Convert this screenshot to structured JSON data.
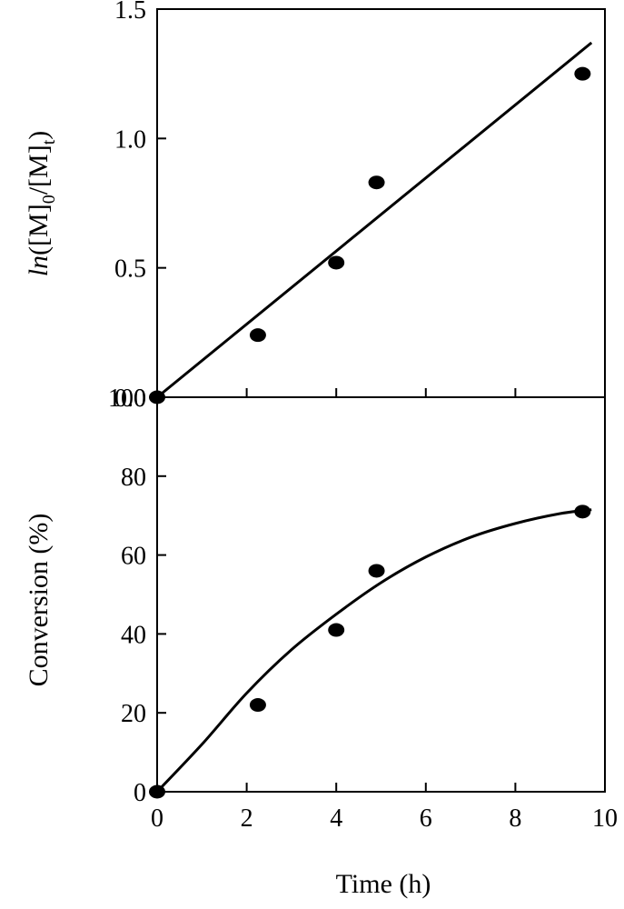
{
  "chart_data": [
    {
      "type": "scatter",
      "panel": "top",
      "ylabel": {
        "prefix": "ln",
        "m1": "([M]",
        "sub0": "0",
        "m2": "/[M]",
        "subt": "t",
        "m3": ")"
      },
      "xlim": [
        0,
        10
      ],
      "ylim": [
        0,
        1.5
      ],
      "yticks": [
        "0.0",
        "0.5",
        "1.0",
        "1.5"
      ],
      "yticks_values": [
        0,
        0.5,
        1.0,
        1.5
      ],
      "xticks_values": [
        0,
        2,
        4,
        6,
        8,
        10
      ],
      "series": [
        {
          "points": [
            [
              0,
              0
            ],
            [
              2.25,
              0.24
            ],
            [
              4.0,
              0.52
            ],
            [
              4.9,
              0.83
            ],
            [
              9.5,
              1.25
            ]
          ],
          "marker": "filled-circle"
        }
      ],
      "fit_line": {
        "type": "linear",
        "points": [
          [
            0,
            0
          ],
          [
            9.7,
            1.37
          ]
        ]
      },
      "color": "#000000"
    },
    {
      "type": "scatter",
      "panel": "bottom",
      "xlabel": "Time (h)",
      "ylabel": "Conversion (%)",
      "xlim": [
        0,
        10
      ],
      "ylim": [
        0,
        100
      ],
      "xticks": [
        "0",
        "2",
        "4",
        "6",
        "8",
        "10"
      ],
      "xticks_values": [
        0,
        2,
        4,
        6,
        8,
        10
      ],
      "yticks": [
        "0",
        "20",
        "40",
        "60",
        "80",
        "100"
      ],
      "yticks_values": [
        0,
        20,
        40,
        60,
        80,
        100
      ],
      "series": [
        {
          "points": [
            [
              0,
              0
            ],
            [
              2.25,
              22
            ],
            [
              4.0,
              41
            ],
            [
              4.9,
              56
            ],
            [
              9.5,
              71
            ]
          ],
          "marker": "filled-circle"
        }
      ],
      "fit_curve": {
        "type": "smooth",
        "points": [
          [
            0,
            0
          ],
          [
            1,
            12
          ],
          [
            2,
            25
          ],
          [
            3,
            36
          ],
          [
            4,
            45
          ],
          [
            5,
            53
          ],
          [
            6,
            59.5
          ],
          [
            7,
            64.5
          ],
          [
            8,
            68
          ],
          [
            9,
            70.5
          ],
          [
            9.7,
            71.5
          ]
        ]
      },
      "color": "#000000"
    }
  ]
}
